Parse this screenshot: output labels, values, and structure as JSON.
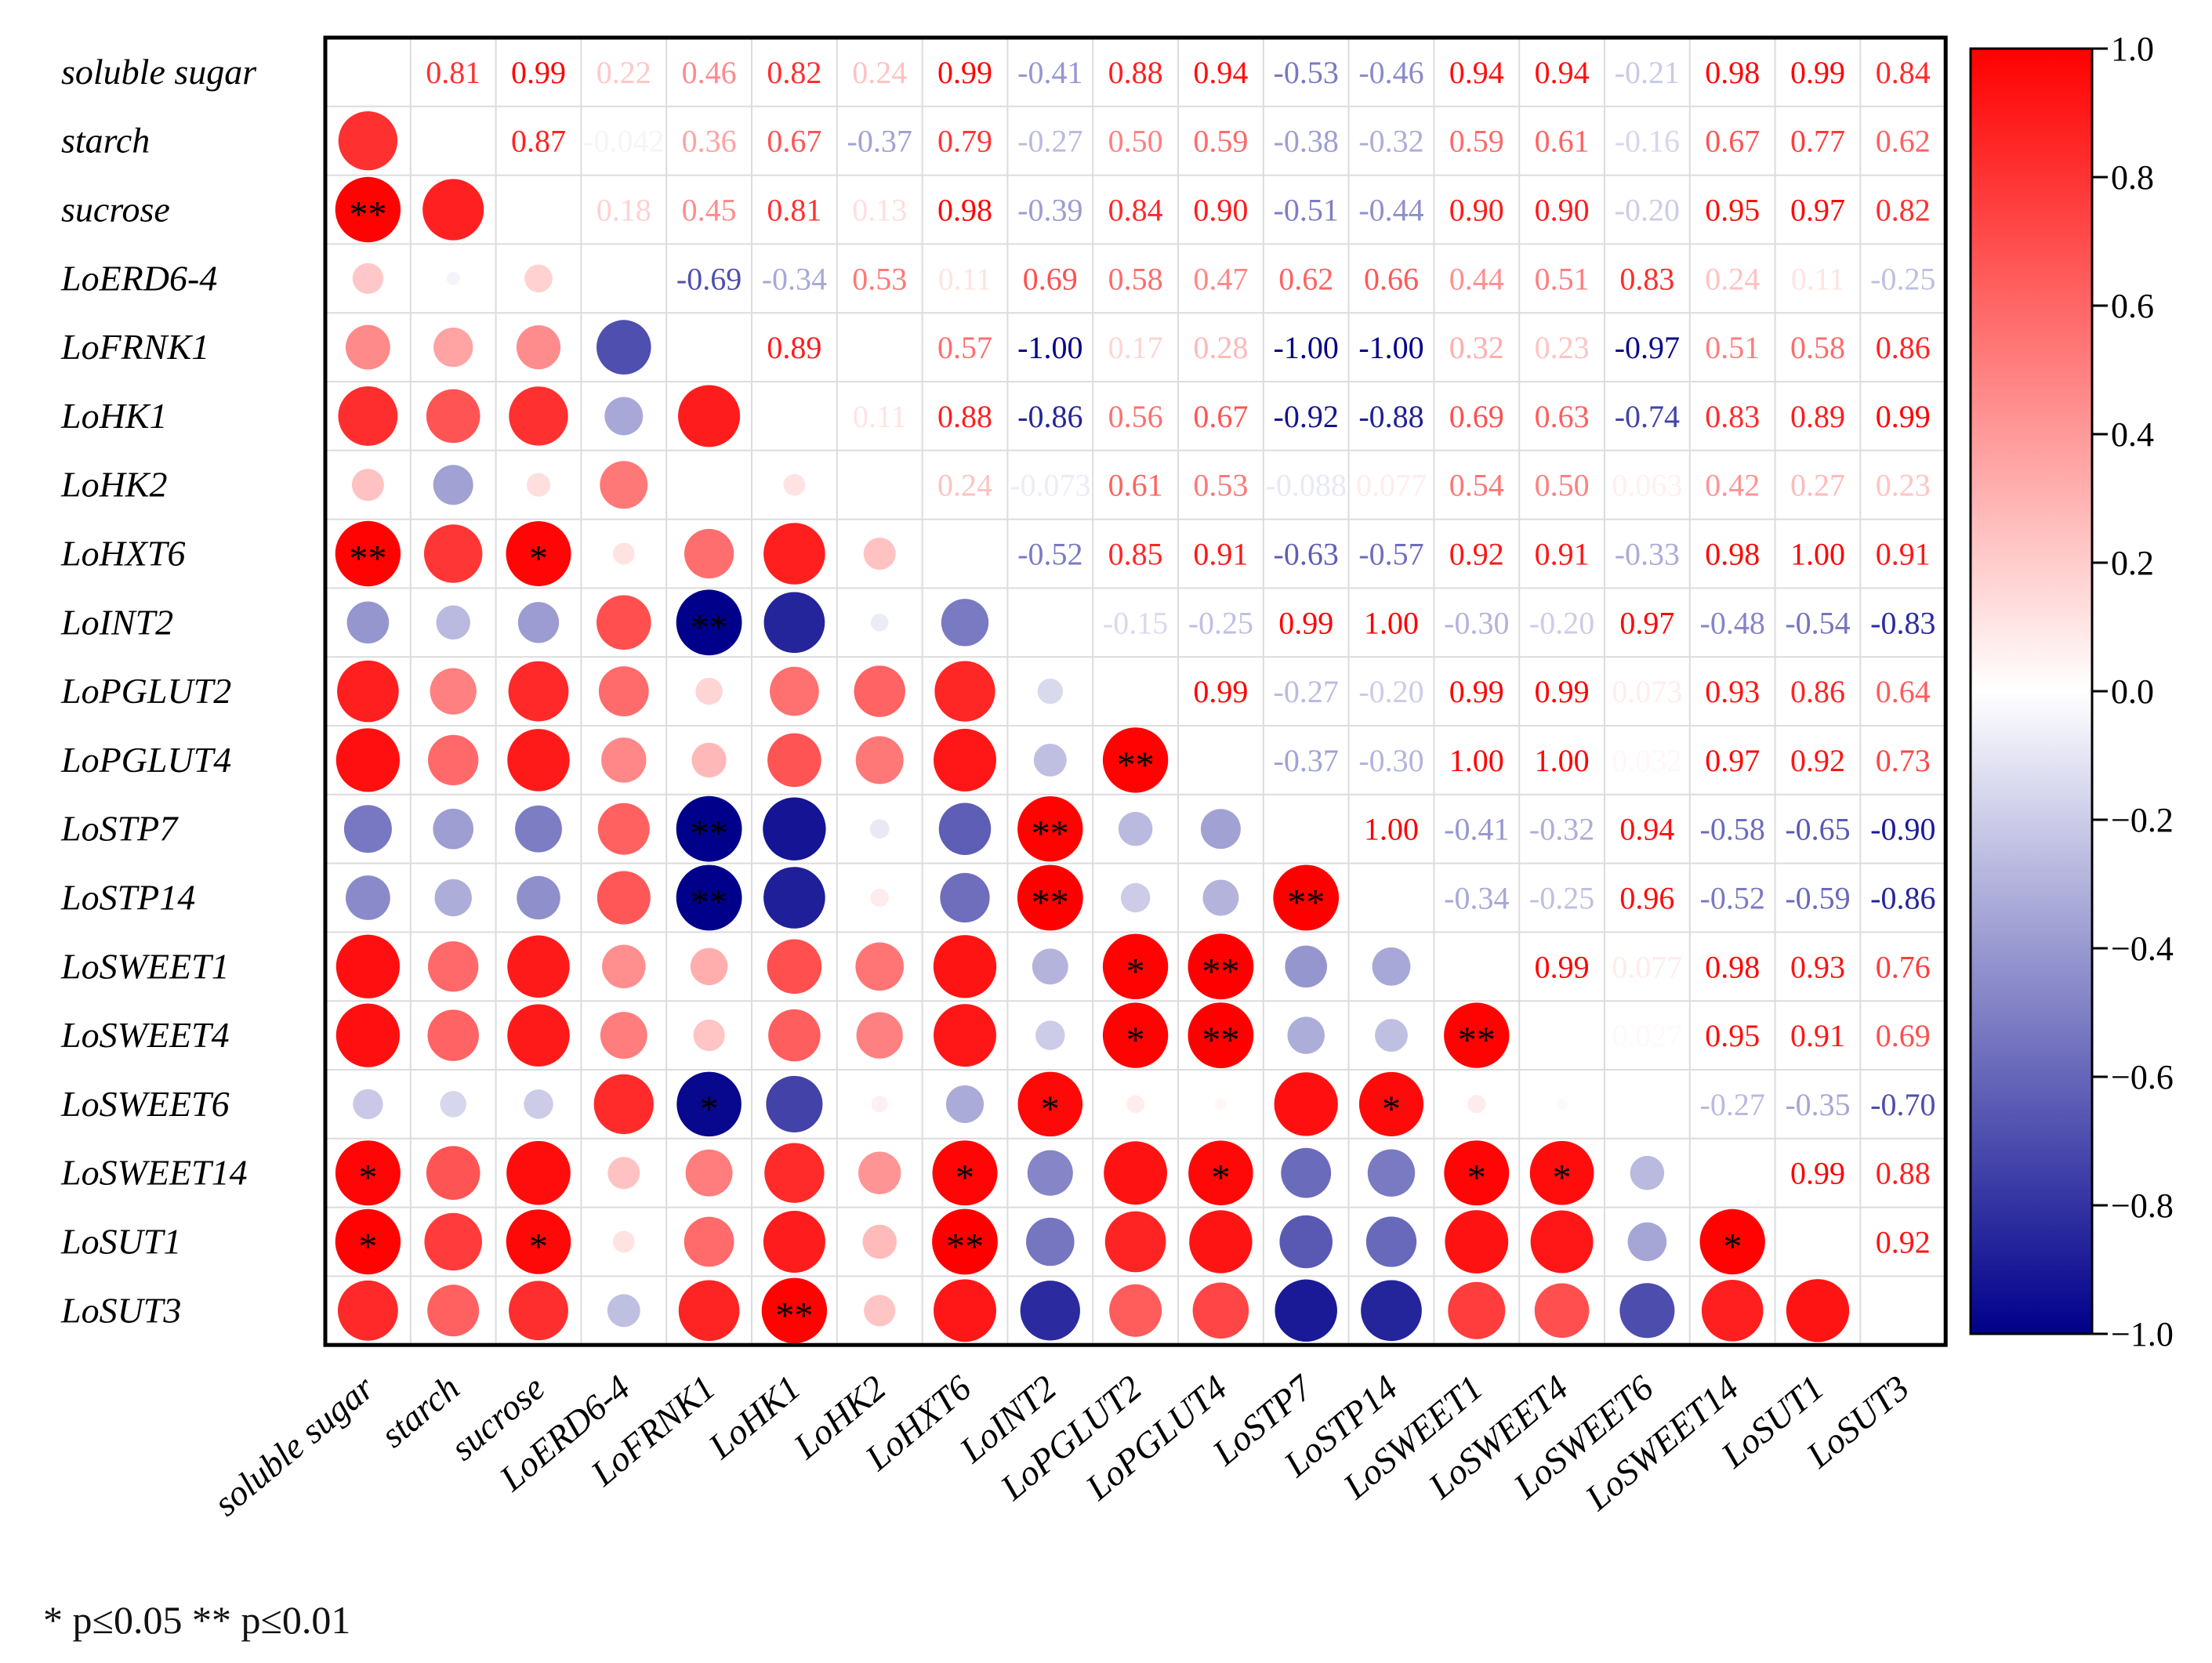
{
  "chart_data": {
    "type": "heatmap",
    "subtype": "correlation-matrix",
    "variables": [
      "soluble sugar",
      "starch",
      "sucrose",
      "LoERD6-4",
      "LoFRNK1",
      "LoHK1",
      "LoHK2",
      "LoHXT6",
      "LoINT2",
      "LoPGLUT2",
      "LoPGLUT4",
      "LoSTP7",
      "LoSTP14",
      "LoSWEET1",
      "LoSWEET4",
      "LoSWEET6",
      "LoSWEET14",
      "LoSUT1",
      "LoSUT3"
    ],
    "upper_labels": [
      [
        "",
        "0.81",
        "0.99",
        "0.22",
        "0.46",
        "0.82",
        "0.24",
        "0.99",
        "-0.41",
        "0.88",
        "0.94",
        "-0.53",
        "-0.46",
        "0.94",
        "0.94",
        "-0.21",
        "0.98",
        "0.99",
        "0.84"
      ],
      [
        "",
        "",
        "0.87",
        "-0.042",
        "0.36",
        "0.67",
        "-0.37",
        "0.79",
        "-0.27",
        "0.50",
        "0.59",
        "-0.38",
        "-0.32",
        "0.59",
        "0.61",
        "-0.16",
        "0.67",
        "0.77",
        "0.62"
      ],
      [
        "",
        "",
        "",
        "0.18",
        "0.45",
        "0.81",
        "0.13",
        "0.98",
        "-0.39",
        "0.84",
        "0.90",
        "-0.51",
        "-0.44",
        "0.90",
        "0.90",
        "-0.20",
        "0.95",
        "0.97",
        "0.82"
      ],
      [
        "",
        "",
        "",
        "",
        "-0.69",
        "-0.34",
        "0.53",
        "0.11",
        "0.69",
        "0.58",
        "0.47",
        "0.62",
        "0.66",
        "0.44",
        "0.51",
        "0.83",
        "0.24",
        "0.11",
        "-0.25"
      ],
      [
        "",
        "",
        "",
        "",
        "",
        "0.89",
        "",
        "0.57",
        "-1.00",
        "0.17",
        "0.28",
        "-1.00",
        "-1.00",
        "0.32",
        "0.23",
        "-0.97",
        "0.51",
        "0.58",
        "0.86"
      ],
      [
        "",
        "",
        "",
        "",
        "",
        "",
        "0.11",
        "0.88",
        "-0.86",
        "0.56",
        "0.67",
        "-0.92",
        "-0.88",
        "0.69",
        "0.63",
        "-0.74",
        "0.83",
        "0.89",
        "0.99"
      ],
      [
        "",
        "",
        "",
        "",
        "",
        "",
        "",
        "0.24",
        "-0.073",
        "0.61",
        "0.53",
        "-0.088",
        "0.077",
        "0.54",
        "0.50",
        "0.063",
        "0.42",
        "0.27",
        "0.23"
      ],
      [
        "",
        "",
        "",
        "",
        "",
        "",
        "",
        "",
        "-0.52",
        "0.85",
        "0.91",
        "-0.63",
        "-0.57",
        "0.92",
        "0.91",
        "-0.33",
        "0.98",
        "1.00",
        "0.91"
      ],
      [
        "",
        "",
        "",
        "",
        "",
        "",
        "",
        "",
        "",
        "-0.15",
        "-0.25",
        "0.99",
        "1.00",
        "-0.30",
        "-0.20",
        "0.97",
        "-0.48",
        "-0.54",
        "-0.83"
      ],
      [
        "",
        "",
        "",
        "",
        "",
        "",
        "",
        "",
        "",
        "",
        "0.99",
        "-0.27",
        "-0.20",
        "0.99",
        "0.99",
        "0.073",
        "0.93",
        "0.86",
        "0.64"
      ],
      [
        "",
        "",
        "",
        "",
        "",
        "",
        "",
        "",
        "",
        "",
        "",
        "-0.37",
        "-0.30",
        "1.00",
        "1.00",
        "0.032",
        "0.97",
        "0.92",
        "0.73"
      ],
      [
        "",
        "",
        "",
        "",
        "",
        "",
        "",
        "",
        "",
        "",
        "",
        "",
        "1.00",
        "-0.41",
        "-0.32",
        "0.94",
        "-0.58",
        "-0.65",
        "-0.90"
      ],
      [
        "",
        "",
        "",
        "",
        "",
        "",
        "",
        "",
        "",
        "",
        "",
        "",
        "",
        "-0.34",
        "-0.25",
        "0.96",
        "-0.52",
        "-0.59",
        "-0.86"
      ],
      [
        "",
        "",
        "",
        "",
        "",
        "",
        "",
        "",
        "",
        "",
        "",
        "",
        "",
        "",
        "0.99",
        "0.077",
        "0.98",
        "0.93",
        "0.76"
      ],
      [
        "",
        "",
        "",
        "",
        "",
        "",
        "",
        "",
        "",
        "",
        "",
        "",
        "",
        "",
        "",
        "0.027",
        "0.95",
        "0.91",
        "0.69"
      ],
      [
        "",
        "",
        "",
        "",
        "",
        "",
        "",
        "",
        "",
        "",
        "",
        "",
        "",
        "",
        "",
        "",
        "-0.27",
        "-0.35",
        "-0.70"
      ],
      [
        "",
        "",
        "",
        "",
        "",
        "",
        "",
        "",
        "",
        "",
        "",
        "",
        "",
        "",
        "",
        "",
        "",
        "0.99",
        "0.88"
      ],
      [
        "",
        "",
        "",
        "",
        "",
        "",
        "",
        "",
        "",
        "",
        "",
        "",
        "",
        "",
        "",
        "",
        "",
        "",
        "0.92"
      ],
      [
        "",
        "",
        "",
        "",
        "",
        "",
        "",
        "",
        "",
        "",
        "",
        "",
        "",
        "",
        "",
        "",
        "",
        "",
        ""
      ]
    ],
    "lower_values": [
      [],
      [
        0.81
      ],
      [
        0.99,
        0.87
      ],
      [
        0.22,
        -0.042,
        0.18
      ],
      [
        0.46,
        0.36,
        0.45,
        -0.69
      ],
      [
        0.82,
        0.67,
        0.81,
        -0.34,
        0.89
      ],
      [
        0.24,
        -0.37,
        0.13,
        0.53,
        0.0,
        0.11
      ],
      [
        0.99,
        0.79,
        0.98,
        0.11,
        0.57,
        0.88,
        0.24
      ],
      [
        -0.41,
        -0.27,
        -0.39,
        0.69,
        -1.0,
        -0.86,
        -0.073,
        -0.52
      ],
      [
        0.88,
        0.5,
        0.84,
        0.58,
        0.17,
        0.56,
        0.61,
        0.85,
        -0.15
      ],
      [
        0.94,
        0.59,
        0.9,
        0.47,
        0.28,
        0.67,
        0.53,
        0.91,
        -0.25,
        0.99
      ],
      [
        -0.53,
        -0.38,
        -0.51,
        0.62,
        -1.0,
        -0.92,
        -0.088,
        -0.63,
        0.99,
        -0.27,
        -0.37
      ],
      [
        -0.46,
        -0.32,
        -0.44,
        0.66,
        -1.0,
        -0.88,
        0.077,
        -0.57,
        1.0,
        -0.2,
        -0.3,
        1.0
      ],
      [
        0.94,
        0.59,
        0.9,
        0.44,
        0.32,
        0.69,
        0.54,
        0.92,
        -0.3,
        0.99,
        1.0,
        -0.41,
        -0.34
      ],
      [
        0.94,
        0.61,
        0.9,
        0.51,
        0.23,
        0.63,
        0.5,
        0.91,
        -0.2,
        0.99,
        1.0,
        -0.32,
        -0.25,
        0.99
      ],
      [
        -0.21,
        -0.16,
        -0.2,
        0.83,
        -0.97,
        -0.74,
        0.063,
        -0.33,
        0.97,
        0.073,
        0.032,
        0.94,
        0.96,
        0.077,
        0.027
      ],
      [
        0.98,
        0.67,
        0.95,
        0.24,
        0.51,
        0.83,
        0.42,
        0.98,
        -0.48,
        0.93,
        0.97,
        -0.58,
        -0.52,
        0.98,
        0.95,
        -0.27
      ],
      [
        0.99,
        0.77,
        0.97,
        0.11,
        0.58,
        0.89,
        0.27,
        1.0,
        -0.54,
        0.86,
        0.92,
        -0.65,
        -0.59,
        0.93,
        0.91,
        -0.35,
        0.99
      ],
      [
        0.84,
        0.62,
        0.82,
        -0.25,
        0.86,
        0.99,
        0.23,
        0.91,
        -0.83,
        0.64,
        0.73,
        -0.9,
        -0.86,
        0.76,
        0.69,
        -0.7,
        0.88,
        0.92
      ]
    ],
    "significance": [
      [],
      [
        "",
        ""
      ],
      [
        "**",
        "",
        ""
      ],
      [
        "",
        "",
        "",
        ""
      ],
      [
        "",
        "",
        "",
        "",
        ""
      ],
      [
        "",
        "",
        "",
        "",
        "",
        ""
      ],
      [
        "",
        "",
        "",
        "",
        "",
        "",
        ""
      ],
      [
        "**",
        "",
        "*",
        "",
        "",
        "",
        ""
      ],
      [
        "",
        "",
        "",
        "",
        "**",
        "",
        "",
        ""
      ],
      [
        "",
        "",
        "",
        "",
        "",
        "",
        "",
        "",
        ""
      ],
      [
        "",
        "",
        "",
        "",
        "",
        "",
        "",
        "",
        "",
        "**"
      ],
      [
        "",
        "",
        "",
        "",
        "**",
        "",
        "",
        "",
        "**",
        "",
        ""
      ],
      [
        "",
        "",
        "",
        "",
        "**",
        "",
        "",
        "",
        "**",
        "",
        "",
        "**"
      ],
      [
        "",
        "",
        "",
        "",
        "",
        "",
        "",
        "",
        "",
        "*",
        "**",
        "",
        ""
      ],
      [
        "",
        "",
        "",
        "",
        "",
        "",
        "",
        "",
        "",
        "*",
        "**",
        "",
        "",
        "**"
      ],
      [
        "",
        "",
        "",
        "",
        "*",
        "",
        "",
        "",
        "*",
        "",
        "",
        "",
        "*",
        "",
        ""
      ],
      [
        "*",
        "",
        "",
        "",
        "",
        "",
        "",
        "*",
        "",
        "",
        "*",
        "",
        "",
        "*",
        "*",
        ""
      ],
      [
        "*",
        "",
        "*",
        "",
        "",
        "",
        "",
        "**",
        "",
        "",
        "",
        "",
        "",
        "",
        "",
        "",
        "*"
      ],
      [
        "",
        "",
        "",
        "",
        "",
        "**",
        "",
        "",
        "",
        "",
        "",
        "",
        "",
        "",
        "",
        "",
        "",
        ""
      ]
    ],
    "colorbar": {
      "min": -1.0,
      "max": 1.0,
      "ticks": [
        "1.0",
        "0.8",
        "0.6",
        "0.4",
        "0.2",
        "0.0",
        "−0.2",
        "−0.4",
        "−0.6",
        "−0.8",
        "−1.0"
      ],
      "colors": {
        "negative": "#00008b",
        "zero": "#ffffff",
        "positive": "#ff0000"
      }
    },
    "footnote": "* p≤0.05  ** p≤0.01"
  }
}
